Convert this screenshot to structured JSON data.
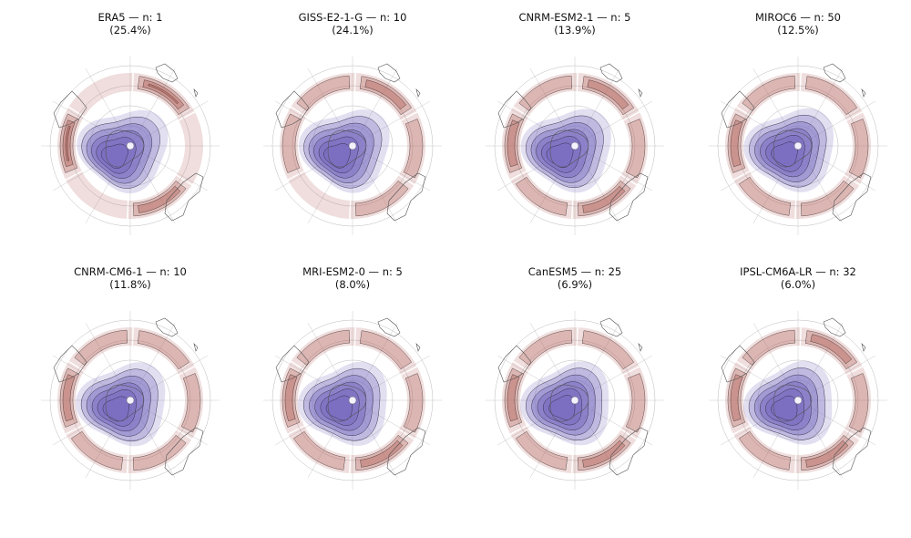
{
  "chart_data": {
    "type": "polar-contour-panels",
    "projection": "south-polar-stereographic",
    "colors": {
      "negative": "#7a6ec0",
      "positive": "#b66a63",
      "coast": "#555555",
      "grid": "#bbbbbb"
    },
    "panels": [
      {
        "model": "ERA5",
        "n": 1,
        "share": "25.4%",
        "title": "ERA5 — n: 1",
        "subtitle": "(25.4%)",
        "pos_amp": [
          0.9,
          0.2,
          0.7,
          0.2,
          0.9,
          0.2
        ],
        "neg_center": 0.95
      },
      {
        "model": "GISS-E2-1-G",
        "n": 10,
        "share": "24.1%",
        "title": "GISS-E2-1-G — n: 10",
        "subtitle": "(24.1%)",
        "pos_amp": [
          0.7,
          0.6,
          0.5,
          0.2,
          0.6,
          0.4
        ],
        "neg_center": 0.9
      },
      {
        "model": "CNRM-ESM2-1",
        "n": 5,
        "share": "13.9%",
        "title": "CNRM-ESM2-1 — n: 5",
        "subtitle": "(13.9%)",
        "pos_amp": [
          0.7,
          0.5,
          0.7,
          0.5,
          0.8,
          0.5
        ],
        "neg_center": 0.85
      },
      {
        "model": "MIROC6",
        "n": 50,
        "share": "12.5%",
        "title": "MIROC6 — n: 50",
        "subtitle": "(12.5%)",
        "pos_amp": [
          0.6,
          0.5,
          0.6,
          0.4,
          0.8,
          0.4
        ],
        "neg_center": 0.7
      },
      {
        "model": "CNRM-CM6-1",
        "n": 10,
        "share": "11.8%",
        "title": "CNRM-CM6-1 — n: 10",
        "subtitle": "(11.8%)",
        "pos_amp": [
          0.5,
          0.4,
          0.6,
          0.5,
          0.7,
          0.4
        ],
        "neg_center": 0.75
      },
      {
        "model": "MRI-ESM2-0",
        "n": 5,
        "share": "8.0%",
        "title": "MRI-ESM2-0 — n: 5",
        "subtitle": "(8.0%)",
        "pos_amp": [
          0.5,
          0.5,
          0.8,
          0.6,
          0.7,
          0.4
        ],
        "neg_center": 0.65
      },
      {
        "model": "CanESM5",
        "n": 25,
        "share": "6.9%",
        "title": "CanESM5 — n: 25",
        "subtitle": "(6.9%)",
        "pos_amp": [
          0.6,
          0.5,
          0.8,
          0.5,
          0.7,
          0.5
        ],
        "neg_center": 0.6
      },
      {
        "model": "IPSL-CM6A-LR",
        "n": 32,
        "share": "6.0%",
        "title": "IPSL-CM6A-LR — n: 32",
        "subtitle": "(6.0%)",
        "pos_amp": [
          0.7,
          0.5,
          0.7,
          0.5,
          0.8,
          0.5
        ],
        "neg_center": 0.7
      }
    ]
  }
}
